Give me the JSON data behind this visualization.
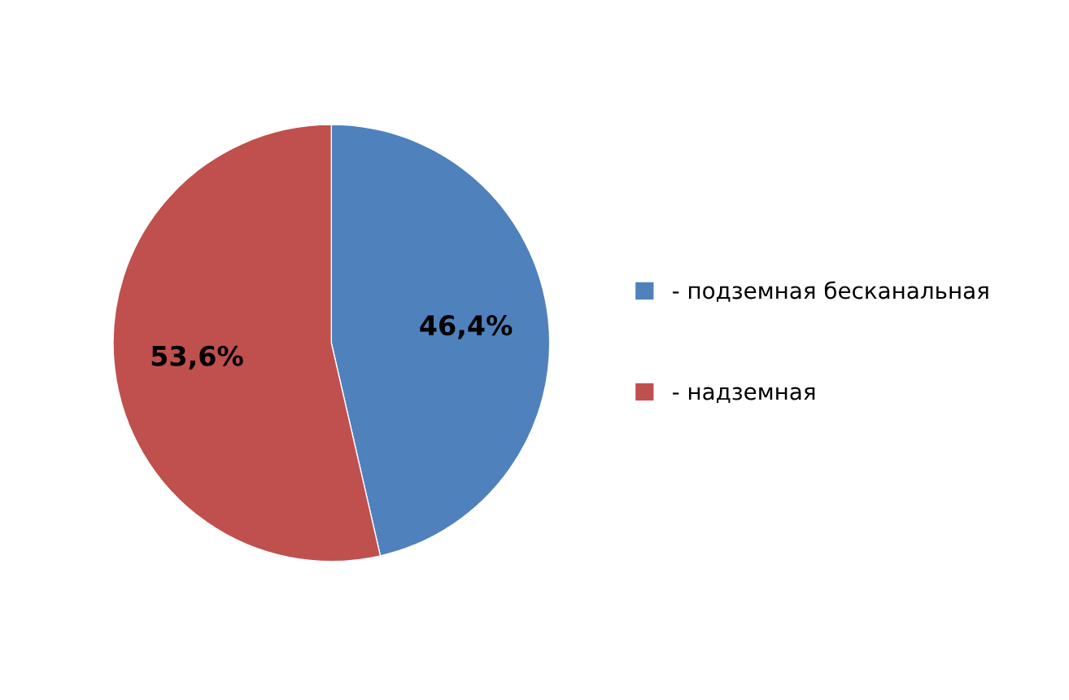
{
  "chart_data": {
    "type": "pie",
    "categories": [
      "- подземная бесканальная",
      "- надземная"
    ],
    "values": [
      46.4,
      53.6
    ],
    "value_labels": [
      "46,4%",
      "53,6%"
    ],
    "colors": [
      "#4f81bd",
      "#c0504d"
    ],
    "legend": "right"
  }
}
